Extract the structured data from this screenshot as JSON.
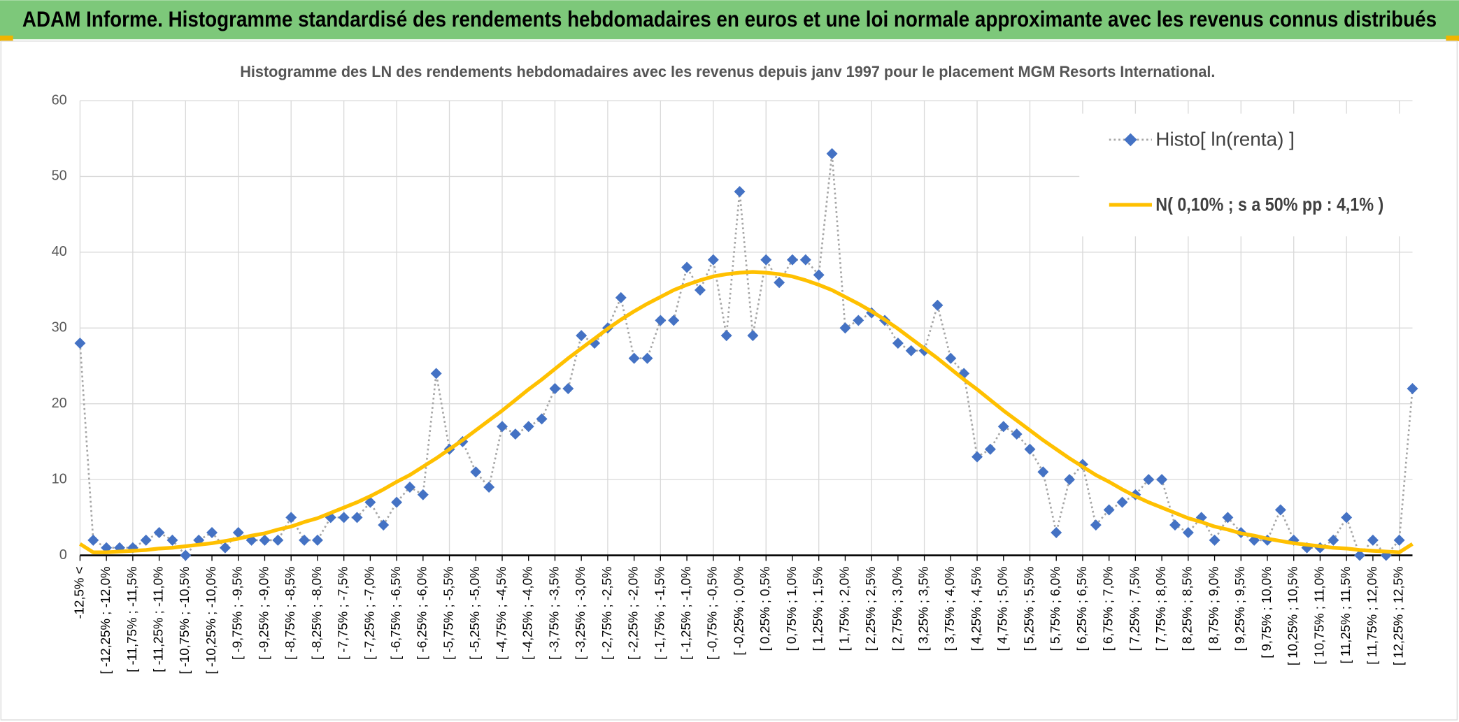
{
  "header": {
    "title": "ADAM Informe. Histogramme standardisé des rendements hebdomadaires en euros et une loi normale approximante avec les revenus connus distribués"
  },
  "chart_data": {
    "type": "line",
    "title": "Histogramme des LN des rendements hebdomadaires avec les revenus depuis janv 1997 pour le placement MGM Resorts International.",
    "categories": [
      "-12,5% <",
      null,
      "[ -12,25% ; -12,0%",
      null,
      "[ -11,75% ; -11,5%",
      null,
      "[ -11,25% ; -11,0%",
      null,
      "[ -10,75% ; -10,5%",
      null,
      "[ -10,25% ; -10,0%",
      null,
      "[ -9,75% ; -9,5%",
      null,
      "[ -9,25% ; -9,0%",
      null,
      "[ -8,75% ; -8,5%",
      null,
      "[ -8,25% ; -8,0%",
      null,
      "[ -7,75% ; -7,5%",
      null,
      "[ -7,25% ; -7,0%",
      null,
      "[ -6,75% ; -6,5%",
      null,
      "[ -6,25% ; -6,0%",
      null,
      "[ -5,75% ; -5,5%",
      null,
      "[ -5,25% ; -5,0%",
      null,
      "[ -4,75% ; -4,5%",
      null,
      "[ -4,25% ; -4,0%",
      null,
      "[ -3,75% ; -3,5%",
      null,
      "[ -3,25% ; -3,0%",
      null,
      "[ -2,75% ; -2,5%",
      null,
      "[ -2,25% ; -2,0%",
      null,
      "[ -1,75% ; -1,5%",
      null,
      "[ -1,25% ; -1,0%",
      null,
      "[ -0,75% ; -0,5%",
      null,
      "[ -0,25% ; 0,0%",
      null,
      "[ 0,25% ; 0,5%",
      null,
      "[ 0,75% ; 1,0%",
      null,
      "[ 1,25% ; 1,5%",
      null,
      "[ 1,75% ; 2,0%",
      null,
      "[ 2,25% ; 2,5%",
      null,
      "[ 2,75% ; 3,0%",
      null,
      "[ 3,25% ; 3,5%",
      null,
      "[ 3,75% ; 4,0%",
      null,
      "[ 4,25% ; 4,5%",
      null,
      "[ 4,75% ; 5,0%",
      null,
      "[ 5,25% ; 5,5%",
      null,
      "[ 5,75% ; 6,0%",
      null,
      "[ 6,25% ; 6,5%",
      null,
      "[ 6,75% ; 7,0%",
      null,
      "[ 7,25% ; 7,5%",
      null,
      "[ 7,75% ; 8,0%",
      null,
      "[ 8,25% ; 8,5%",
      null,
      "[ 8,75% ; 9,0%",
      null,
      "[ 9,25% ; 9,5%",
      null,
      "[ 9,75% ; 10,0%",
      null,
      "[ 10,25% ; 10,5%",
      null,
      "[ 10,75% ; 11,0%",
      null,
      "[ 11,25% ; 11,5%",
      null,
      "[ 11,75% ; 12,0%",
      null,
      "[ 12,25% ; 12,5%",
      null
    ],
    "series": [
      {
        "name": "Histo[ ln(renta) ]",
        "color": "#4472c4",
        "line_color": "#a6a6a6",
        "values": [
          28,
          2,
          1,
          1,
          1,
          2,
          3,
          2,
          0,
          2,
          3,
          1,
          3,
          2,
          2,
          2,
          5,
          2,
          2,
          5,
          5,
          5,
          7,
          4,
          7,
          9,
          8,
          24,
          14,
          15,
          11,
          9,
          17,
          16,
          17,
          18,
          22,
          22,
          29,
          28,
          30,
          34,
          26,
          26,
          31,
          31,
          38,
          35,
          39,
          29,
          48,
          29,
          39,
          36,
          39,
          39,
          37,
          53,
          30,
          31,
          32,
          31,
          28,
          27,
          27,
          33,
          26,
          24,
          13,
          14,
          17,
          16,
          14,
          11,
          3,
          10,
          12,
          4,
          6,
          7,
          8,
          10,
          10,
          4,
          3,
          5,
          2,
          5,
          3,
          2,
          2,
          6,
          2,
          1,
          1,
          2,
          5,
          0,
          2,
          0,
          2,
          22
        ]
      },
      {
        "name": "N( 0,10% ; s a 50% pp : 4,1% )",
        "color": "#ffc000",
        "values": [
          1.5,
          0.4,
          0.4,
          0.5,
          0.6,
          0.7,
          0.9,
          1.0,
          1.2,
          1.4,
          1.6,
          1.9,
          2.2,
          2.6,
          2.9,
          3.4,
          3.8,
          4.4,
          4.9,
          5.6,
          6.3,
          7.0,
          7.8,
          8.7,
          9.7,
          10.6,
          11.7,
          12.8,
          14.0,
          15.2,
          16.5,
          17.8,
          19.1,
          20.5,
          21.9,
          23.2,
          24.6,
          26.0,
          27.3,
          28.6,
          29.9,
          31.1,
          32.2,
          33.2,
          34.1,
          35.0,
          35.7,
          36.3,
          36.8,
          37.1,
          37.3,
          37.4,
          37.3,
          37.1,
          36.8,
          36.3,
          35.7,
          35.0,
          34.1,
          33.2,
          32.2,
          31.1,
          29.9,
          28.6,
          27.3,
          26.0,
          24.6,
          23.2,
          21.9,
          20.5,
          19.1,
          17.8,
          16.5,
          15.2,
          14.0,
          12.8,
          11.7,
          10.6,
          9.7,
          8.7,
          7.8,
          7.0,
          6.3,
          5.6,
          4.9,
          4.4,
          3.8,
          3.4,
          2.9,
          2.6,
          2.2,
          1.9,
          1.6,
          1.4,
          1.2,
          1.0,
          0.9,
          0.7,
          0.6,
          0.5,
          0.4,
          1.5
        ]
      }
    ],
    "ylim": [
      0,
      60
    ],
    "yticks": [
      0,
      10,
      20,
      30,
      40,
      50,
      60
    ],
    "grid": true,
    "legend": "top-right"
  }
}
